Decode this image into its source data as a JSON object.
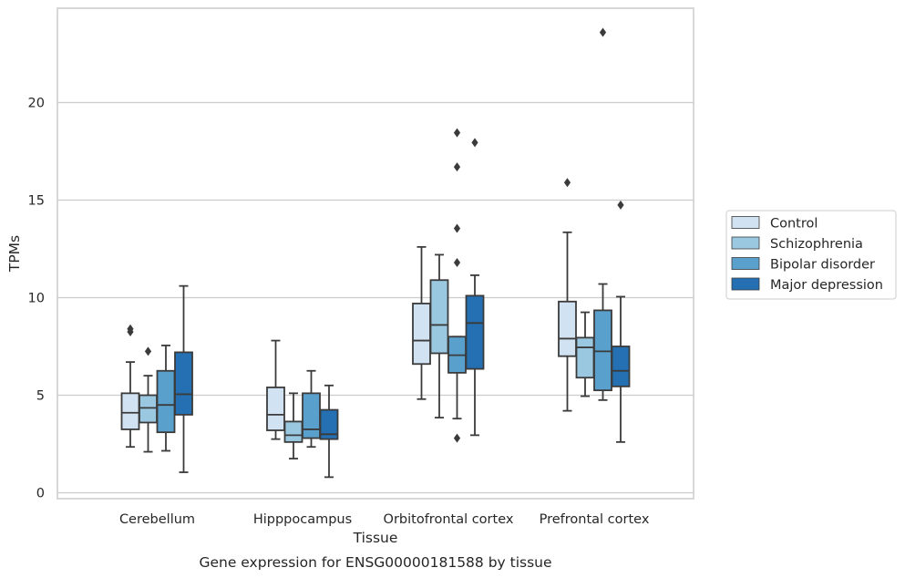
{
  "chart_data": {
    "type": "box",
    "caption": "Gene expression for ENSG00000181588 by tissue",
    "xlabel": "Tissue",
    "ylabel": "TPMs",
    "ylim": [
      -0.3,
      24.8
    ],
    "yticks": [
      0,
      5,
      10,
      15,
      20
    ],
    "grid": "horizontal",
    "legend_position": "right",
    "categories": [
      "Cerebellum",
      "Hipppocampus",
      "Orbitofrontal cortex",
      "Prefrontal cortex"
    ],
    "series": [
      {
        "name": "Control",
        "color": "#d1e2f2",
        "boxes": [
          {
            "whislo": 2.35,
            "q1": 3.25,
            "med": 4.1,
            "q3": 5.1,
            "whishi": 6.7,
            "fliers": [
              8.25,
              8.4
            ]
          },
          {
            "whislo": 2.75,
            "q1": 3.2,
            "med": 4.0,
            "q3": 5.4,
            "whishi": 7.8,
            "fliers": []
          },
          {
            "whislo": 4.8,
            "q1": 6.6,
            "med": 7.8,
            "q3": 9.7,
            "whishi": 12.6,
            "fliers": []
          },
          {
            "whislo": 4.2,
            "q1": 7.0,
            "med": 7.9,
            "q3": 9.8,
            "whishi": 13.35,
            "fliers": [
              15.9
            ]
          }
        ]
      },
      {
        "name": "Schizophrenia",
        "color": "#9ac8e0",
        "boxes": [
          {
            "whislo": 2.1,
            "q1": 3.6,
            "med": 4.35,
            "q3": 5.0,
            "whishi": 6.0,
            "fliers": [
              7.25
            ]
          },
          {
            "whislo": 1.75,
            "q1": 2.6,
            "med": 2.95,
            "q3": 3.65,
            "whishi": 5.1,
            "fliers": []
          },
          {
            "whislo": 3.85,
            "q1": 7.15,
            "med": 8.6,
            "q3": 10.9,
            "whishi": 12.2,
            "fliers": []
          },
          {
            "whislo": 4.95,
            "q1": 5.9,
            "med": 7.45,
            "q3": 7.95,
            "whishi": 9.25,
            "fliers": []
          }
        ]
      },
      {
        "name": "Bipolar disorder",
        "color": "#5aa0cd",
        "boxes": [
          {
            "whislo": 2.15,
            "q1": 3.1,
            "med": 4.5,
            "q3": 6.25,
            "whishi": 7.55,
            "fliers": []
          },
          {
            "whislo": 2.35,
            "q1": 2.8,
            "med": 3.25,
            "q3": 5.1,
            "whishi": 6.25,
            "fliers": []
          },
          {
            "whislo": 3.8,
            "q1": 6.15,
            "med": 7.05,
            "q3": 8.0,
            "whishi": 8.0,
            "fliers": [
              2.8,
              11.8,
              13.55,
              16.7,
              18.45
            ]
          },
          {
            "whislo": 4.75,
            "q1": 5.25,
            "med": 7.25,
            "q3": 9.35,
            "whishi": 10.7,
            "fliers": [
              23.6
            ]
          }
        ]
      },
      {
        "name": "Major depression",
        "color": "#2470b2",
        "boxes": [
          {
            "whislo": 1.05,
            "q1": 4.0,
            "med": 5.05,
            "q3": 7.2,
            "whishi": 10.6,
            "fliers": []
          },
          {
            "whislo": 0.8,
            "q1": 2.75,
            "med": 3.0,
            "q3": 4.25,
            "whishi": 5.5,
            "fliers": []
          },
          {
            "whislo": 2.95,
            "q1": 6.35,
            "med": 8.7,
            "q3": 10.1,
            "whishi": 11.15,
            "fliers": [
              17.95
            ]
          },
          {
            "whislo": 2.6,
            "q1": 5.45,
            "med": 6.25,
            "q3": 7.5,
            "whishi": 10.05,
            "fliers": [
              14.75
            ]
          }
        ]
      }
    ]
  }
}
